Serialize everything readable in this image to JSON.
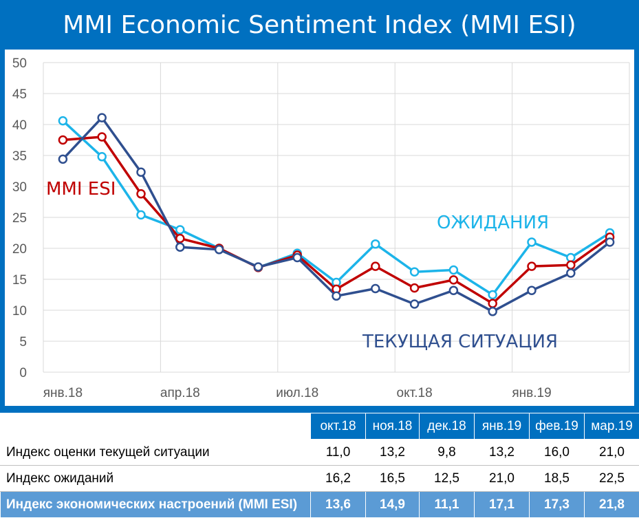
{
  "title": "MMI Economic Sentiment Index (MMI ESI)",
  "chart_data": {
    "type": "line",
    "x": [
      "янв.18",
      "фев.18",
      "мар.18",
      "апр.18",
      "май.18",
      "июн.18",
      "июл.18",
      "авг.18",
      "сен.18",
      "окт.18",
      "ноя.18",
      "дек.18",
      "янв.19",
      "фев.19",
      "мар.19"
    ],
    "xticks": [
      "янв.18",
      "апр.18",
      "июл.18",
      "окт.18",
      "янв.19"
    ],
    "ylim": [
      0,
      50
    ],
    "yticks": [
      0,
      5,
      10,
      15,
      20,
      25,
      30,
      35,
      40,
      45,
      50
    ],
    "grid": true,
    "series": [
      {
        "name": "ОЖИДАНИЯ",
        "color": "#1CB4E9",
        "values": [
          40.6,
          34.8,
          25.4,
          23.0,
          20.0,
          16.9,
          19.2,
          14.5,
          20.7,
          16.2,
          16.5,
          12.5,
          21.0,
          18.5,
          22.5
        ]
      },
      {
        "name": "MMI ESI",
        "color": "#C00000",
        "values": [
          37.5,
          38.0,
          28.8,
          21.6,
          20.0,
          16.9,
          18.9,
          13.4,
          17.1,
          13.6,
          14.9,
          11.1,
          17.1,
          17.3,
          21.8
        ]
      },
      {
        "name": "ТЕКУЩАЯ СИТУАЦИЯ",
        "color": "#2F4F8F",
        "values": [
          34.4,
          41.1,
          32.3,
          20.2,
          19.8,
          17.0,
          18.5,
          12.3,
          13.5,
          11.0,
          13.2,
          9.8,
          13.2,
          16.0,
          21.0
        ]
      }
    ]
  },
  "table": {
    "headers": [
      "окт.18",
      "ноя.18",
      "дек.18",
      "янв.19",
      "фев.19",
      "мар.19"
    ],
    "rows": [
      {
        "label": "Индекс оценки текущей ситуации",
        "values": [
          "11,0",
          "13,2",
          "9,8",
          "13,2",
          "16,0",
          "21,0"
        ]
      },
      {
        "label": "Индекс ожиданий",
        "values": [
          "16,2",
          "16,5",
          "12,5",
          "21,0",
          "18,5",
          "22,5"
        ]
      },
      {
        "label": "Индекс экономических настроений (MMI ESI)",
        "values": [
          "13,6",
          "14,9",
          "11,1",
          "17,1",
          "17,3",
          "21,8"
        ]
      }
    ]
  }
}
